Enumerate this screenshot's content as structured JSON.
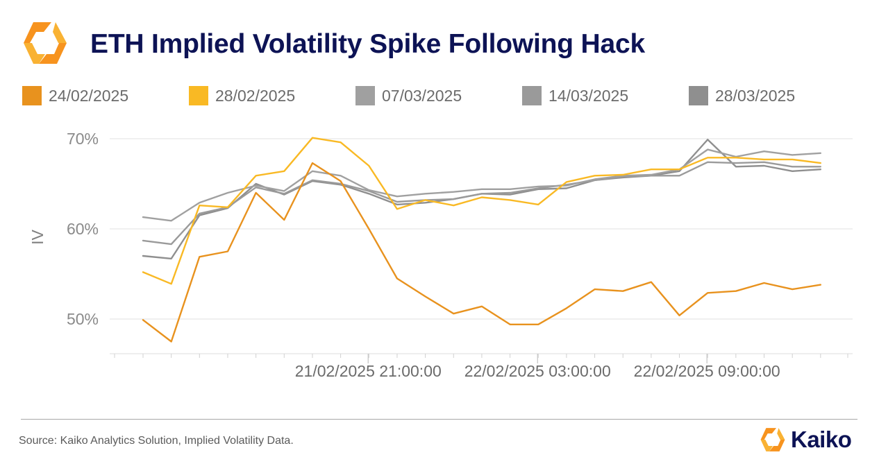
{
  "header": {
    "title": "ETH Implied Volatility Spike Following Hack"
  },
  "footer": {
    "source": "Source: Kaiko Analytics Solution, Implied Volatility Data.",
    "brand": "Kaiko"
  },
  "colors": {
    "title": "#0d1355",
    "brand_orange": "#f7931e",
    "brand_yellow": "#f9b233"
  },
  "chart_data": {
    "type": "line",
    "title": "ETH Implied Volatility Spike Following Hack",
    "ylabel": "IV",
    "xlabel": "",
    "ylim": [
      46,
      71
    ],
    "yticks": [
      50,
      60,
      70
    ],
    "ytick_labels": [
      "50%",
      "60%",
      "70%"
    ],
    "x_count": 25,
    "xtick_labels": [
      {
        "index": 8,
        "label": "21/02/2025 21:00:00"
      },
      {
        "index": 14,
        "label": "22/02/2025 03:00:00"
      },
      {
        "index": 20,
        "label": "22/02/2025 09:00:00"
      }
    ],
    "grid": "horizontal",
    "legend_position": "top",
    "series": [
      {
        "name": "24/02/2025",
        "color": "#e8921e",
        "values": [
          49.9,
          47.5,
          56.9,
          57.5,
          64.0,
          61.0,
          67.3,
          65.3,
          60.0,
          54.5,
          52.5,
          50.6,
          51.4,
          49.4,
          49.4,
          51.2,
          53.3,
          53.1,
          54.1,
          50.4,
          52.9,
          53.1,
          54.0,
          53.3,
          53.8
        ]
      },
      {
        "name": "28/02/2025",
        "color": "#f9b924",
        "values": [
          55.2,
          53.9,
          62.6,
          62.4,
          65.9,
          66.4,
          70.1,
          69.6,
          67.0,
          62.2,
          63.2,
          62.6,
          63.5,
          63.2,
          62.7,
          65.2,
          65.9,
          66.0,
          66.6,
          66.6,
          67.9,
          67.9,
          67.7,
          67.7,
          67.3
        ]
      },
      {
        "name": "07/03/2025",
        "color": "#a0a0a0",
        "values": [
          61.3,
          60.9,
          62.9,
          64.0,
          64.8,
          64.2,
          66.4,
          65.9,
          64.3,
          63.6,
          63.9,
          64.1,
          64.4,
          64.4,
          64.7,
          64.8,
          65.5,
          65.9,
          66.0,
          66.6,
          68.8,
          68.0,
          68.6,
          68.2,
          68.4
        ]
      },
      {
        "name": "14/03/2025",
        "color": "#9a9a9a",
        "values": [
          58.7,
          58.3,
          61.7,
          62.4,
          64.6,
          63.9,
          65.4,
          65.0,
          64.2,
          63.0,
          63.2,
          63.3,
          63.9,
          64.0,
          64.5,
          64.9,
          65.4,
          65.8,
          65.9,
          65.9,
          67.4,
          67.3,
          67.4,
          66.9,
          66.9
        ]
      },
      {
        "name": "28/03/2025",
        "color": "#8f8f8f",
        "values": [
          57.0,
          56.7,
          61.5,
          62.3,
          65.0,
          63.8,
          65.3,
          64.9,
          63.9,
          62.7,
          62.9,
          63.3,
          63.9,
          63.8,
          64.4,
          64.5,
          65.4,
          65.7,
          65.9,
          66.4,
          69.9,
          66.9,
          67.0,
          66.4,
          66.6
        ]
      }
    ]
  }
}
